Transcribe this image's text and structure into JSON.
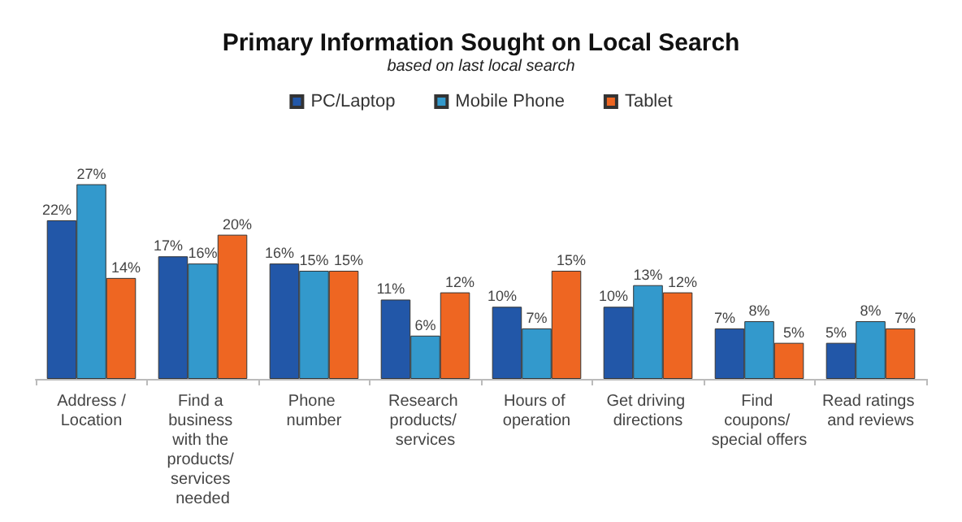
{
  "chart_data": {
    "type": "bar",
    "title": "Primary Information Sought on Local Search",
    "subtitle": "based on last local search",
    "categories": [
      "Address /Location",
      "Find a business with the products/ services needed",
      "Phone number",
      "Research products/ services",
      "Hours of operation",
      "Get driving directions",
      "Find coupons/ special offers",
      "Read ratings and reviews"
    ],
    "series": [
      {
        "name": "PC/Laptop",
        "color": "#2257a8",
        "values": [
          22,
          17,
          16,
          11,
          10,
          10,
          7,
          5
        ],
        "value_labels": [
          "22%",
          "17%",
          "16%",
          "11%",
          "10%",
          "10%",
          "7%",
          "5%"
        ]
      },
      {
        "name": "Mobile Phone",
        "color": "#3399cc",
        "values": [
          27,
          16,
          15,
          6,
          7,
          13,
          8,
          8
        ],
        "value_labels": [
          "27%",
          "16%",
          "15%",
          "6%",
          "7%",
          "13%",
          "8%",
          "8%"
        ]
      },
      {
        "name": "Tablet",
        "color": "#ee6622",
        "values": [
          14,
          20,
          15,
          12,
          15,
          12,
          5,
          7
        ],
        "value_labels": [
          "14%",
          "20%",
          "15%",
          "12%",
          "15%",
          "12%",
          "5%",
          "7%"
        ]
      }
    ],
    "legend": "top",
    "grid": false
  }
}
